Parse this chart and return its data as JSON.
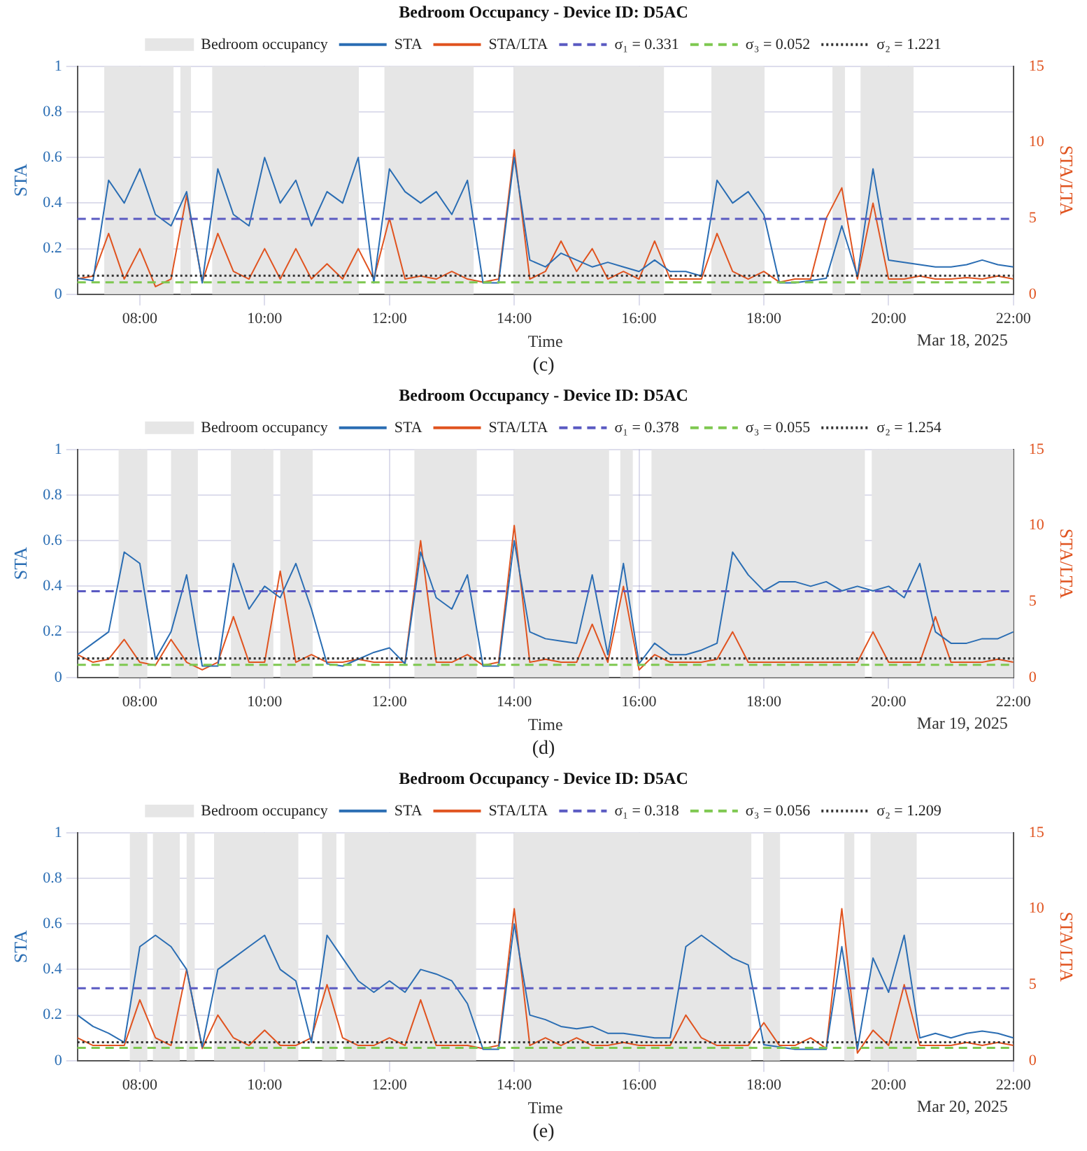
{
  "chart_data": [
    {
      "type": "line",
      "title": "Bedroom Occupancy - Device ID: D5AC",
      "xlabel": "Time",
      "ylabel": "STA",
      "y2label": "STA/LTA",
      "legend": "top",
      "grid": true,
      "marker": "none",
      "x": [
        7,
        7.25,
        7.5,
        7.75,
        8,
        8.25,
        8.5,
        8.75,
        9,
        9.25,
        9.5,
        9.75,
        10,
        10.25,
        10.5,
        10.75,
        11,
        11.25,
        11.5,
        11.75,
        12,
        12.25,
        12.5,
        12.75,
        13,
        13.25,
        13.5,
        13.75,
        14,
        14.25,
        14.5,
        14.75,
        15,
        15.25,
        15.5,
        15.75,
        16,
        16.25,
        16.5,
        16.75,
        17,
        17.25,
        17.5,
        17.75,
        18,
        18.25,
        18.5,
        18.75,
        19,
        19.25,
        19.5,
        19.75,
        20,
        20.25,
        20.5,
        20.75,
        21,
        21.25,
        21.5,
        21.75,
        22
      ],
      "xlim": [
        7,
        22
      ],
      "xticks": [
        {
          "value": 8,
          "label": "08:00"
        },
        {
          "value": 10,
          "label": "10:00"
        },
        {
          "value": 12,
          "label": "12:00"
        },
        {
          "value": 14,
          "label": "14:00"
        },
        {
          "value": 16,
          "label": "16:00"
        },
        {
          "value": 18,
          "label": "18:00"
        },
        {
          "value": 20,
          "label": "20:00"
        },
        {
          "value": 22,
          "label": "22:00"
        }
      ],
      "ylim": [
        0,
        1
      ],
      "yticks": [
        0,
        0.2,
        0.4,
        0.6,
        0.8,
        1
      ],
      "y2lim": [
        0,
        15
      ],
      "y2ticks": [
        0,
        5,
        10,
        15
      ],
      "series": [
        {
          "name": "STA",
          "color": "#2a6db3",
          "values": [
            0.07,
            0.06,
            0.5,
            0.4,
            0.55,
            0.35,
            0.3,
            0.45,
            0.05,
            0.55,
            0.35,
            0.3,
            0.6,
            0.4,
            0.5,
            0.3,
            0.45,
            0.4,
            0.6,
            0.05,
            0.55,
            0.45,
            0.4,
            0.45,
            0.35,
            0.5,
            0.05,
            0.05,
            0.6,
            0.15,
            0.12,
            0.18,
            0.15,
            0.12,
            0.14,
            0.12,
            0.1,
            0.15,
            0.1,
            0.1,
            0.08,
            0.5,
            0.4,
            0.45,
            0.35,
            0.05,
            0.05,
            0.06,
            0.07,
            0.3,
            0.08,
            0.55,
            0.15,
            0.14,
            0.13,
            0.12,
            0.12,
            0.13,
            0.15,
            0.13,
            0.12
          ]
        },
        {
          "name": "STA/LTA",
          "color": "#e0531f",
          "axis": "y2",
          "values": [
            1,
            1.2,
            4,
            1,
            3,
            0.5,
            1,
            6.5,
            0.8,
            4,
            1.5,
            1,
            3,
            1,
            3,
            1,
            2,
            1,
            3,
            1,
            5,
            1,
            1.2,
            1,
            1.5,
            1,
            0.8,
            1,
            9.5,
            1,
            1.5,
            3.5,
            1.5,
            3,
            1,
            1.5,
            1,
            3.5,
            1,
            1,
            1,
            4,
            1.5,
            1,
            1.5,
            0.8,
            1,
            1,
            5,
            7,
            1,
            6,
            1,
            1,
            1.2,
            1,
            1,
            1.1,
            1,
            1.2,
            1
          ]
        }
      ],
      "bands": [
        {
          "axis": "x",
          "from": 7.43,
          "to": 8.54,
          "label": "Bedroom occupancy",
          "color": "#e6e6e6"
        },
        {
          "axis": "x",
          "from": 8.65,
          "to": 8.82,
          "color": "#e6e6e6"
        },
        {
          "axis": "x",
          "from": 9.16,
          "to": 11.51,
          "color": "#e6e6e6"
        },
        {
          "axis": "x",
          "from": 11.92,
          "to": 13.35,
          "color": "#e6e6e6"
        },
        {
          "axis": "x",
          "from": 13.99,
          "to": 16.4,
          "color": "#e6e6e6"
        },
        {
          "axis": "x",
          "from": 17.16,
          "to": 18.01,
          "color": "#e6e6e6"
        },
        {
          "axis": "x",
          "from": 19.1,
          "to": 19.3,
          "color": "#e6e6e6"
        },
        {
          "axis": "x",
          "from": 19.55,
          "to": 20.4,
          "color": "#e6e6e6"
        }
      ],
      "ref_lines": [
        {
          "axis": "y",
          "value": 0.331,
          "label": "σ₁ = 0.331",
          "color": "#5a5ac2",
          "line_style": "dashed"
        },
        {
          "axis": "y",
          "value": 0.052,
          "label": "σ₃ = 0.052",
          "color": "#7ec850",
          "line_style": "dashed"
        },
        {
          "axis": "y2",
          "value": 1.221,
          "label": "σ₂ = 1.221",
          "color": "#333333",
          "line_style": "dotted"
        }
      ],
      "annotations": [
        "Mar 18, 2025",
        "(c)"
      ]
    },
    {
      "type": "line",
      "title": "Bedroom Occupancy - Device ID: D5AC",
      "xlabel": "Time",
      "ylabel": "STA",
      "y2label": "STA/LTA",
      "legend": "top",
      "grid": true,
      "marker": "none",
      "x": [
        7,
        7.25,
        7.5,
        7.75,
        8,
        8.25,
        8.5,
        8.75,
        9,
        9.25,
        9.5,
        9.75,
        10,
        10.25,
        10.5,
        10.75,
        11,
        11.25,
        11.5,
        11.75,
        12,
        12.25,
        12.5,
        12.75,
        13,
        13.25,
        13.5,
        13.75,
        14,
        14.25,
        14.5,
        14.75,
        15,
        15.25,
        15.5,
        15.75,
        16,
        16.25,
        16.5,
        16.75,
        17,
        17.25,
        17.5,
        17.75,
        18,
        18.25,
        18.5,
        18.75,
        19,
        19.25,
        19.5,
        19.75,
        20,
        20.25,
        20.5,
        20.75,
        21,
        21.25,
        21.5,
        21.75,
        22
      ],
      "xlim": [
        7,
        22
      ],
      "xticks": [
        {
          "value": 8,
          "label": "08:00"
        },
        {
          "value": 10,
          "label": "10:00"
        },
        {
          "value": 12,
          "label": "12:00"
        },
        {
          "value": 14,
          "label": "14:00"
        },
        {
          "value": 16,
          "label": "16:00"
        },
        {
          "value": 18,
          "label": "18:00"
        },
        {
          "value": 20,
          "label": "20:00"
        },
        {
          "value": 22,
          "label": "22:00"
        }
      ],
      "ylim": [
        0,
        1
      ],
      "yticks": [
        0,
        0.2,
        0.4,
        0.6,
        0.8,
        1
      ],
      "y2lim": [
        0,
        15
      ],
      "y2ticks": [
        0,
        5,
        10,
        15
      ],
      "series": [
        {
          "name": "STA",
          "color": "#2a6db3",
          "values": [
            0.1,
            0.15,
            0.2,
            0.55,
            0.5,
            0.08,
            0.2,
            0.45,
            0.05,
            0.05,
            0.5,
            0.3,
            0.4,
            0.35,
            0.5,
            0.3,
            0.06,
            0.05,
            0.08,
            0.11,
            0.13,
            0.06,
            0.55,
            0.35,
            0.3,
            0.45,
            0.05,
            0.05,
            0.6,
            0.2,
            0.17,
            0.16,
            0.15,
            0.45,
            0.1,
            0.5,
            0.06,
            0.15,
            0.1,
            0.1,
            0.12,
            0.15,
            0.55,
            0.45,
            0.38,
            0.42,
            0.42,
            0.4,
            0.42,
            0.38,
            0.4,
            0.38,
            0.4,
            0.35,
            0.5,
            0.2,
            0.15,
            0.15,
            0.17,
            0.17,
            0.2
          ]
        },
        {
          "name": "STA/LTA",
          "color": "#e0531f",
          "axis": "y2",
          "values": [
            1.5,
            1,
            1.2,
            2.5,
            1,
            0.8,
            2.5,
            1,
            0.5,
            1,
            4,
            1,
            1,
            7,
            1,
            1.5,
            1,
            1,
            1.2,
            1,
            1,
            1,
            9,
            1,
            1,
            1.5,
            0.8,
            1,
            10,
            1,
            1.2,
            1,
            1,
            3.5,
            1,
            6,
            0.5,
            1.5,
            1,
            1,
            1,
            1.2,
            3,
            1,
            1,
            1,
            1,
            1,
            1,
            1,
            1,
            3,
            1,
            1,
            1,
            4,
            1,
            1,
            1,
            1.2,
            1
          ]
        }
      ],
      "bands": [
        {
          "axis": "x",
          "from": 7.66,
          "to": 8.12,
          "label": "Bedroom occupancy",
          "color": "#e6e6e6"
        },
        {
          "axis": "x",
          "from": 8.5,
          "to": 8.93,
          "color": "#e6e6e6"
        },
        {
          "axis": "x",
          "from": 9.46,
          "to": 10.14,
          "color": "#e6e6e6"
        },
        {
          "axis": "x",
          "from": 10.25,
          "to": 10.77,
          "color": "#e6e6e6"
        },
        {
          "axis": "x",
          "from": 12.4,
          "to": 13.4,
          "color": "#e6e6e6"
        },
        {
          "axis": "x",
          "from": 13.99,
          "to": 15.52,
          "color": "#e6e6e6"
        },
        {
          "axis": "x",
          "from": 15.7,
          "to": 15.9,
          "color": "#e6e6e6"
        },
        {
          "axis": "x",
          "from": 16.2,
          "to": 19.62,
          "color": "#e6e6e6"
        },
        {
          "axis": "x",
          "from": 19.73,
          "to": 22,
          "color": "#e6e6e6"
        }
      ],
      "ref_lines": [
        {
          "axis": "y",
          "value": 0.378,
          "label": "σ₁ = 0.378",
          "color": "#5a5ac2",
          "line_style": "dashed"
        },
        {
          "axis": "y",
          "value": 0.055,
          "label": "σ₃ = 0.055",
          "color": "#7ec850",
          "line_style": "dashed"
        },
        {
          "axis": "y2",
          "value": 1.254,
          "label": "σ₂ = 1.254",
          "color": "#333333",
          "line_style": "dotted"
        }
      ],
      "annotations": [
        "Mar 19, 2025",
        "(d)"
      ]
    },
    {
      "type": "line",
      "title": "Bedroom Occupancy - Device ID: D5AC",
      "xlabel": "Time",
      "ylabel": "STA",
      "y2label": "STA/LTA",
      "legend": "top",
      "grid": true,
      "marker": "none",
      "x": [
        7,
        7.25,
        7.5,
        7.75,
        8,
        8.25,
        8.5,
        8.75,
        9,
        9.25,
        9.5,
        9.75,
        10,
        10.25,
        10.5,
        10.75,
        11,
        11.25,
        11.5,
        11.75,
        12,
        12.25,
        12.5,
        12.75,
        13,
        13.25,
        13.5,
        13.75,
        14,
        14.25,
        14.5,
        14.75,
        15,
        15.25,
        15.5,
        15.75,
        16,
        16.25,
        16.5,
        16.75,
        17,
        17.25,
        17.5,
        17.75,
        18,
        18.25,
        18.5,
        18.75,
        19,
        19.25,
        19.5,
        19.75,
        20,
        20.25,
        20.5,
        20.75,
        21,
        21.25,
        21.5,
        21.75,
        22
      ],
      "xlim": [
        7,
        22
      ],
      "xticks": [
        {
          "value": 8,
          "label": "08:00"
        },
        {
          "value": 10,
          "label": "10:00"
        },
        {
          "value": 12,
          "label": "12:00"
        },
        {
          "value": 14,
          "label": "14:00"
        },
        {
          "value": 16,
          "label": "16:00"
        },
        {
          "value": 18,
          "label": "18:00"
        },
        {
          "value": 20,
          "label": "20:00"
        },
        {
          "value": 22,
          "label": "22:00"
        }
      ],
      "ylim": [
        0,
        1
      ],
      "yticks": [
        0,
        0.2,
        0.4,
        0.6,
        0.8,
        1
      ],
      "y2lim": [
        0,
        15
      ],
      "y2ticks": [
        0,
        5,
        10,
        15
      ],
      "series": [
        {
          "name": "STA",
          "color": "#2a6db3",
          "values": [
            0.2,
            0.15,
            0.12,
            0.08,
            0.5,
            0.55,
            0.5,
            0.4,
            0.06,
            0.4,
            0.45,
            0.5,
            0.55,
            0.4,
            0.35,
            0.08,
            0.55,
            0.45,
            0.35,
            0.3,
            0.35,
            0.3,
            0.4,
            0.38,
            0.35,
            0.25,
            0.05,
            0.05,
            0.6,
            0.2,
            0.18,
            0.15,
            0.14,
            0.15,
            0.12,
            0.12,
            0.11,
            0.1,
            0.1,
            0.5,
            0.55,
            0.5,
            0.45,
            0.42,
            0.07,
            0.06,
            0.05,
            0.05,
            0.05,
            0.5,
            0.05,
            0.45,
            0.3,
            0.55,
            0.1,
            0.12,
            0.1,
            0.12,
            0.13,
            0.12,
            0.1
          ]
        },
        {
          "name": "STA/LTA",
          "color": "#e0531f",
          "axis": "y2",
          "values": [
            1.5,
            1,
            1,
            1,
            4,
            1.5,
            1,
            6,
            0.8,
            3,
            1.5,
            1,
            2,
            1,
            1,
            1.5,
            5,
            1.5,
            1,
            1,
            1.5,
            1,
            4,
            1,
            1,
            1,
            0.8,
            1,
            10,
            1,
            1.5,
            1,
            1.5,
            1,
            1,
            1.2,
            1,
            1,
            1,
            3,
            1.5,
            1,
            1,
            1,
            2.5,
            1,
            1,
            1.5,
            0.8,
            10,
            0.5,
            2,
            1,
            5,
            1,
            1,
            1,
            1.2,
            1,
            1.2,
            1
          ]
        }
      ],
      "bands": [
        {
          "axis": "x",
          "from": 7.84,
          "to": 8.12,
          "label": "Bedroom occupancy",
          "color": "#e6e6e6"
        },
        {
          "axis": "x",
          "from": 8.21,
          "to": 8.64,
          "color": "#e6e6e6"
        },
        {
          "axis": "x",
          "from": 8.75,
          "to": 8.88,
          "color": "#e6e6e6"
        },
        {
          "axis": "x",
          "from": 9.19,
          "to": 10.54,
          "color": "#e6e6e6"
        },
        {
          "axis": "x",
          "from": 10.92,
          "to": 11.15,
          "color": "#e6e6e6"
        },
        {
          "axis": "x",
          "from": 11.28,
          "to": 13.39,
          "color": "#e6e6e6"
        },
        {
          "axis": "x",
          "from": 13.99,
          "to": 17.8,
          "color": "#e6e6e6"
        },
        {
          "axis": "x",
          "from": 17.99,
          "to": 18.26,
          "color": "#e6e6e6"
        },
        {
          "axis": "x",
          "from": 19.29,
          "to": 19.45,
          "color": "#e6e6e6"
        },
        {
          "axis": "x",
          "from": 19.71,
          "to": 20.45,
          "color": "#e6e6e6"
        }
      ],
      "ref_lines": [
        {
          "axis": "y",
          "value": 0.318,
          "label": "σ₁ = 0.318",
          "color": "#5a5ac2",
          "line_style": "dashed"
        },
        {
          "axis": "y",
          "value": 0.056,
          "label": "σ₃ = 0.056",
          "color": "#7ec850",
          "line_style": "dashed"
        },
        {
          "axis": "y2",
          "value": 1.209,
          "label": "σ₂ = 1.209",
          "color": "#333333",
          "line_style": "dotted"
        }
      ],
      "annotations": [
        "Mar 20, 2025",
        "(e)"
      ]
    }
  ]
}
